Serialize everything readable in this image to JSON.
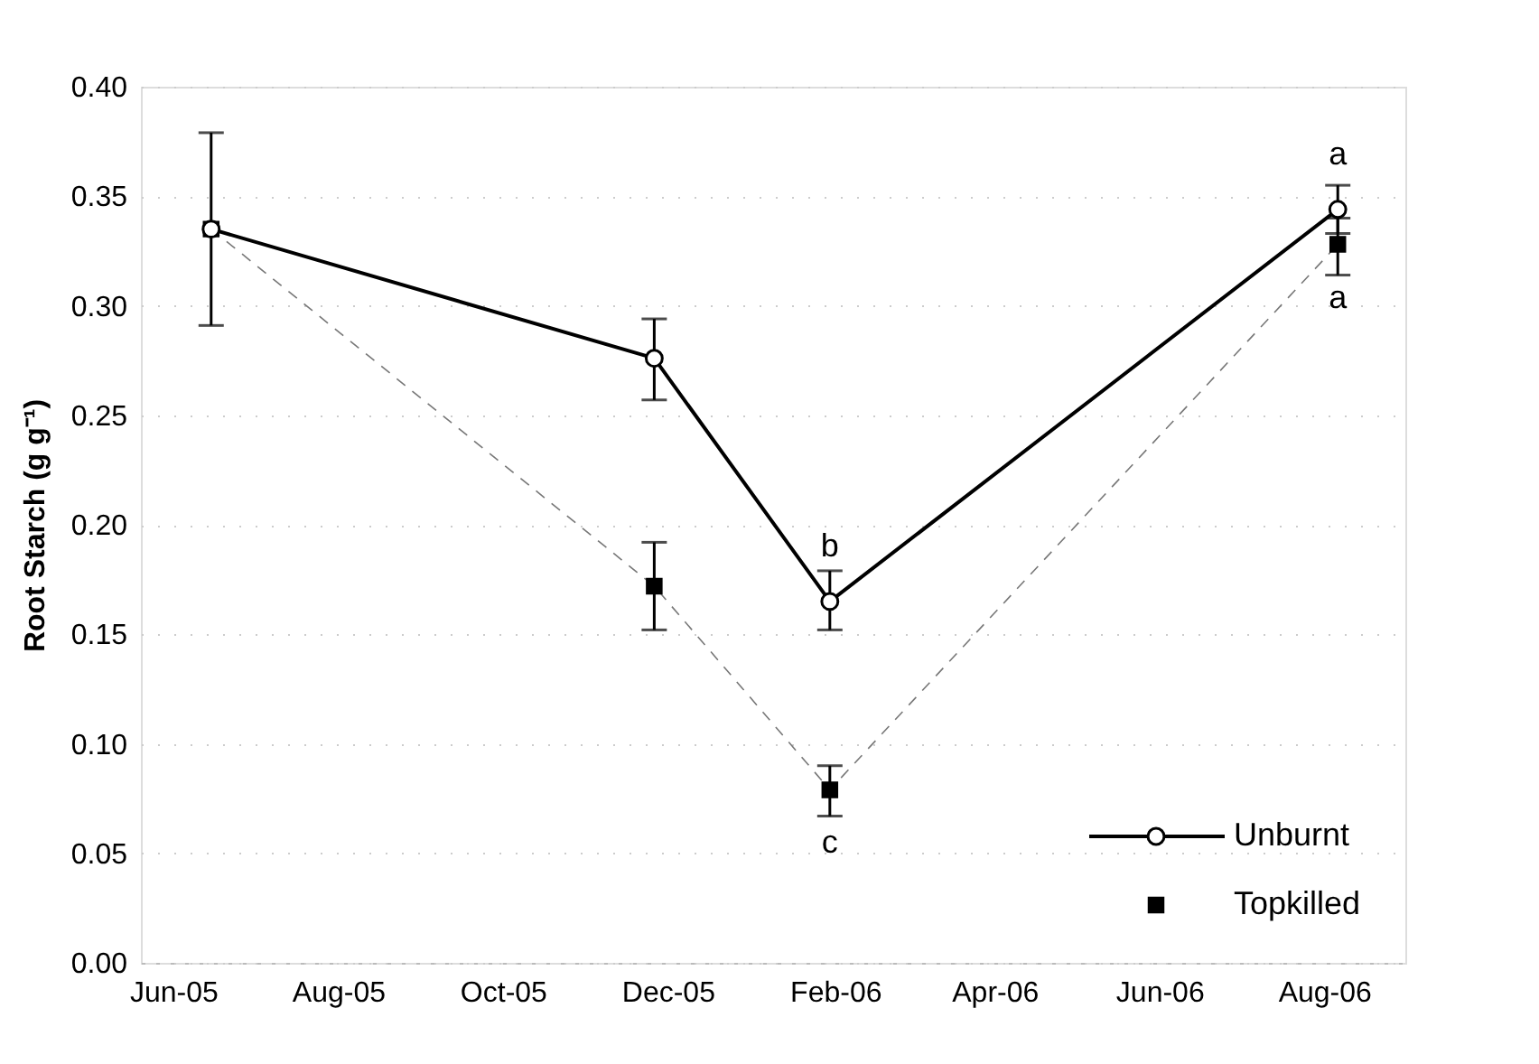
{
  "chart_data": {
    "type": "line",
    "ylabel": "Root Starch (g g⁻¹)",
    "xlim": [
      "2005-05-20",
      "2006-08-31"
    ],
    "xticks": [
      {
        "value": "2005-06-01",
        "label": "Jun-05"
      },
      {
        "value": "2005-08-01",
        "label": "Aug-05"
      },
      {
        "value": "2005-10-01",
        "label": "Oct-05"
      },
      {
        "value": "2005-12-01",
        "label": "Dec-05"
      },
      {
        "value": "2006-02-01",
        "label": "Feb-06"
      },
      {
        "value": "2006-04-01",
        "label": "Apr-06"
      },
      {
        "value": "2006-06-01",
        "label": "Jun-06"
      },
      {
        "value": "2006-08-01",
        "label": "Aug-06"
      }
    ],
    "ylim": [
      0,
      0.4
    ],
    "yticks": [
      {
        "value": 0,
        "label": "0.00"
      },
      0.05,
      {
        "value": 0.1,
        "label": "0.10"
      },
      0.15,
      {
        "value": 0.2,
        "label": "0.20"
      },
      0.25,
      {
        "value": 0.3,
        "label": "0.30"
      },
      0.35,
      {
        "value": 0.4,
        "label": "0.40"
      }
    ],
    "grid": "y",
    "legend": "bottom right",
    "series": [
      {
        "name": "Topkilled",
        "color": "#000000",
        "marker": "square",
        "line_style": "dashed",
        "x": [
          "2005-06-15",
          "2005-11-26",
          "2006-01-30",
          "2006-08-06"
        ],
        "values": [
          0.335,
          0.172,
          0.079,
          0.328
        ],
        "errors": [
          null,
          [
            0.152,
            0.192
          ],
          [
            0.067,
            0.09
          ],
          [
            0.314,
            0.34
          ]
        ]
      },
      {
        "name": "Unburnt",
        "color": "#000000",
        "marker": "circle",
        "line_style": "solid",
        "x": [
          "2005-06-15",
          "2005-11-26",
          "2006-01-30",
          "2006-08-06"
        ],
        "values": [
          0.335,
          0.276,
          0.165,
          0.344
        ],
        "errors": [
          [
            0.291,
            0.379
          ],
          [
            0.257,
            0.294
          ],
          [
            0.152,
            0.179
          ],
          [
            0.333,
            0.355
          ]
        ]
      }
    ],
    "annotations": [
      {
        "text": "a",
        "x": "2006-08-06",
        "y": 0.344
      },
      {
        "text": "a",
        "x": "2006-08-06",
        "y": 0.328
      },
      {
        "text": "b",
        "x": "2006-01-30",
        "y": 0.165
      },
      {
        "text": "c",
        "x": "2006-01-30",
        "y": 0.079
      }
    ]
  }
}
